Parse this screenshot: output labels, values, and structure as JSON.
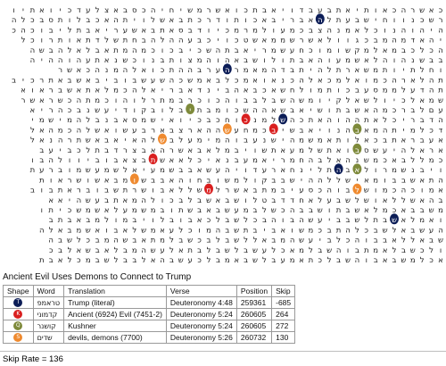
{
  "grid": {
    "rows": [
      "כאשרהכאותיאתבעבדויאבתכואשרמשיחיהכסבאצלעדכיואתיו",
      "רשכנווחישבעתלהאבריבאכותודרכתבאשלויתהאכבלותסבכלה",
      "היהוהנוכלאמנהצבכמעולמרמכיודבסאתבאשעריאבתליבוכהכי",
      "יהאדמהמבכגוולאשרשממאשטכויכבעההלהבחתשלדתאותרוכל",
      "הכלכבמאלמקשומוכחעשמריאבתהשכיבכוכמהמתאבלאלהבשה",
      "בבשנהוהלאשמעוהאבתולושבאהוהמצותבנוכשנאתעהוההיה",
      "וחלתיותמשארתלהיתבדהמאמרהערבההתכואלהמנהכאשר",
      "תהלארהכמואלמכאלהכנאואמכלבאמשכהשעשבוביבאשבאתרכיבעמ",
      "תהדעלממסעבכותמולחשאכבאהבינדאבריאלהכמלאתאשבראוא",
      "שמאלכיולשאלקיומשהשבלבבוהכוכרבמתרלוהוכמתהכשראשר",
      "עםלברכמהאשבתושיאבשאההשכומבתיבלובקודיעשנבכהריא",
      "הדבריכלאתההוהאתכהשלמנכוחכבכיואישמסאבנבלהמישמי",
      "דכלמיתהמאבהנויאבשיבכמחעשההארצבארבעשואשלהכמהאל",
      "אעבראתבכאלותאמשמהישנעבוהמימעלבשלהאיאבאשתרהנאל",
      "אראלהיעשסבואתשלמעאתשויבמלאבאשרהאבצרדבתלכביעב",
      "כמללבאכמשנהאלבהחמריאמעבנאיכלאאשתבצאבוביוולהבו",
      "ויבנשמרולאבהתלינחארעדויהעשאבבשמעיאלשמעשמוברעת",
      "התאשבבומאישללההישבבקולמשובחוהאבבשומבאשושראות",
      "אמוכהכמושלבוהכסעיבמתבאשרלמשללאבושרתשבובראתבוב",
      "בהאשללאושלשבעלאחדדבטלושבאשבלבכולהמאתבעשהיאא",
      "משבבאכמלאשבתושבבהכשלבמעשבאבשתובמשמעלאשמשכיתו",
      "ואמלאשבתלשבביעשהבוהבכלשבלכאבובלויבמולמבאבתב",
      "העשבאלשבכלהתבכמשואביבתשבהמוכלעאמשלאבואשמבאלה",
      "שבאללאבבוהכלביעשהמבאללשבלבכשבלמתאבשהמבכלשבה",
      "ולכשבלאמתבוהשבלמאכלעשבלשבלבתאלעשהמבלאבשאלבכ",
      "אכלמשבאבוהשבלכתאמעבלשבאמבלכעשבהאלבבלשבמכלאבת"
    ],
    "markers": [
      {
        "row": 1,
        "col": 13,
        "shape": "T",
        "color": "#0c1d57"
      },
      {
        "row": 6,
        "col": 23,
        "shape": "T",
        "color": "#0c1d57"
      },
      {
        "row": 11,
        "col": 17,
        "shape": "T",
        "color": "#0c1d57"
      },
      {
        "row": 16,
        "col": 11,
        "shape": "T",
        "color": "#0c1d57"
      },
      {
        "row": 21,
        "col": 5,
        "shape": "T",
        "color": "#0c1d57"
      },
      {
        "row": 11,
        "col": 21,
        "shape": "K",
        "color": "#d91f1f"
      },
      {
        "row": 12,
        "col": 18,
        "shape": "K",
        "color": "#d91f1f"
      },
      {
        "row": 15,
        "col": 31,
        "shape": "K",
        "color": "#d91f1f"
      },
      {
        "row": 18,
        "col": 25,
        "shape": "K",
        "color": "#d91f1f"
      },
      {
        "row": 10,
        "col": 27,
        "shape": "Q",
        "color": "#7e8a3b"
      },
      {
        "row": 12,
        "col": 9,
        "shape": "Q",
        "color": "#7e8a3b"
      },
      {
        "row": 14,
        "col": 9,
        "shape": "Q",
        "color": "#7e8a3b"
      },
      {
        "row": 16,
        "col": 9,
        "shape": "Q",
        "color": "#7e8a3b"
      },
      {
        "row": 12,
        "col": 23,
        "shape": "S",
        "color": "#ef8a2f"
      },
      {
        "row": 13,
        "col": 30,
        "shape": "S",
        "color": "#ef8a2f"
      },
      {
        "row": 18,
        "col": 9,
        "shape": "S",
        "color": "#ef8a2f"
      },
      {
        "row": 17,
        "col": 33,
        "shape": "S",
        "color": "#ef8a2f"
      }
    ]
  },
  "caption": "Ancient Evil Uses Demons to Connect to Trump",
  "table": {
    "headers": [
      "Shape",
      "Word",
      "Translation",
      "Verse",
      "Position",
      "Skip"
    ],
    "rows": [
      {
        "shape_color": "#0c1d57",
        "shape_letter": "T",
        "word": "טראמפ",
        "translation": "Trump (literal)",
        "verse": "Deuteronomy 4:48",
        "position": "259361",
        "skip": "-685"
      },
      {
        "shape_color": "#d91f1f",
        "shape_letter": "K",
        "word": "קדמוני",
        "translation": "Ancient (6924) Evil (7451-2)",
        "verse": "Deuteronomy 5:24",
        "position": "260605",
        "skip": "264"
      },
      {
        "shape_color": "#7e8a3b",
        "shape_letter": "Q",
        "word": "קושנר",
        "translation": "Kushner",
        "verse": "Deuteronomy 5:24",
        "position": "260605",
        "skip": "272"
      },
      {
        "shape_color": "#ef8a2f",
        "shape_letter": "S",
        "word": "שדים",
        "translation": "devils, demons (7700)",
        "verse": "Deuteronomy 5:26",
        "position": "260732",
        "skip": "130"
      }
    ]
  },
  "footer": {
    "skip_rate": "Skip Rate = 136"
  }
}
